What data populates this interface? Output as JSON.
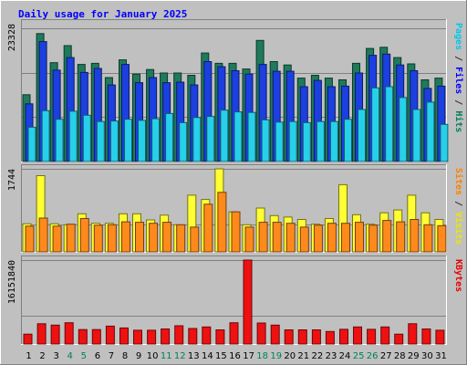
{
  "chart_data": {
    "type": "bar",
    "title": "Daily usage for January 2025",
    "days": [
      1,
      2,
      3,
      4,
      5,
      6,
      7,
      8,
      9,
      10,
      11,
      12,
      13,
      14,
      15,
      16,
      17,
      18,
      19,
      20,
      21,
      22,
      23,
      24,
      25,
      26,
      27,
      28,
      29,
      30,
      31
    ],
    "weekend_days": [
      4,
      5,
      11,
      12,
      18,
      19,
      25,
      26
    ],
    "panels": [
      {
        "id": "pages-files-hits",
        "ymax_label": "23328",
        "ymax": 23328,
        "side_label": [
          {
            "text": "Pages",
            "color": "#00c8e8"
          },
          {
            "text": " / ",
            "color": "#303030"
          },
          {
            "text": "Files",
            "color": "#0000ff"
          },
          {
            "text": " / ",
            "color": "#303030"
          },
          {
            "text": "Hits",
            "color": "#00805b"
          }
        ],
        "series": [
          {
            "name": "Hits",
            "color": "#1f7a5c",
            "values": [
              11700,
              22400,
              17300,
              20300,
              17000,
              17200,
              14700,
              17800,
              15300,
              16100,
              15500,
              15500,
              15100,
              19000,
              17200,
              17200,
              16200,
              21200,
              17500,
              16900,
              14600,
              15100,
              14600,
              14300,
              17200,
              19800,
              20000,
              18200,
              17100,
              14300,
              14600
            ]
          },
          {
            "name": "Files",
            "color": "#1c3fe0",
            "values": [
              10100,
              21000,
              16000,
              18200,
              15600,
              16300,
              13400,
              17000,
              13800,
              14700,
              13800,
              13900,
              13400,
              17500,
              16600,
              15900,
              15300,
              17000,
              15800,
              15800,
              13100,
              14200,
              13100,
              13200,
              15500,
              18600,
              18800,
              16900,
              15900,
              12800,
              13200
            ]
          },
          {
            "name": "Pages",
            "color": "#27d0ea",
            "values": [
              6000,
              8900,
              7400,
              8800,
              8100,
              7000,
              7100,
              7400,
              7200,
              7500,
              8400,
              6800,
              7700,
              7900,
              9000,
              8700,
              8600,
              7300,
              6900,
              7000,
              6800,
              7000,
              7000,
              7400,
              9100,
              12900,
              13100,
              11200,
              9100,
              10400,
              6500
            ]
          }
        ]
      },
      {
        "id": "visits-sites",
        "ymax_label": "1744",
        "ymax": 1744,
        "side_label": [
          {
            "text": "Sites",
            "color": "#ff8000"
          },
          {
            "text": " / ",
            "color": "#303030"
          },
          {
            "text": "Visits",
            "color": "#e8e800"
          }
        ],
        "series": [
          {
            "name": "Visits",
            "color": "#ffff33",
            "values": [
              590,
              1600,
              590,
              570,
              800,
              600,
              600,
              800,
              800,
              670,
              770,
              570,
              1190,
              1100,
              1744,
              840,
              570,
              920,
              760,
              730,
              680,
              580,
              700,
              1410,
              780,
              580,
              820,
              880,
              1190,
              820,
              680
            ]
          },
          {
            "name": "Sites",
            "color": "#ff8a1c",
            "values": [
              540,
              710,
              540,
              580,
              700,
              560,
              570,
              630,
              620,
              600,
              620,
              570,
              520,
              1000,
              1250,
              840,
              520,
              620,
              620,
              600,
              520,
              560,
              600,
              600,
              620,
              560,
              660,
              630,
              680,
              570,
              550
            ]
          }
        ]
      },
      {
        "id": "kbytes",
        "ymax_label": "16151840",
        "ymax": 16151840,
        "side_label": [
          {
            "text": "KBytes",
            "color": "#e80000"
          }
        ],
        "series": [
          {
            "name": "KBytes",
            "color": "#ee1111",
            "values": [
              1890000,
              3900000,
              3640000,
              4090000,
              2770000,
              2770000,
              3440000,
              3090000,
              2650000,
              2650000,
              2890000,
              3510000,
              2980000,
              3290000,
              2720000,
              4090000,
              16151840,
              4040000,
              3640000,
              2720000,
              2720000,
              2720000,
              2410000,
              2830000,
              3290000,
              2830000,
              3290000,
              1890000,
              3900000,
              2890000,
              2650000
            ]
          }
        ]
      }
    ],
    "colors": {
      "background": "#c0c0c0",
      "frame": "#c0c0c0",
      "title": "#0000ff",
      "weekday_label": "#000000",
      "weekend_label": "#00805b",
      "gridline": "#808080"
    }
  }
}
